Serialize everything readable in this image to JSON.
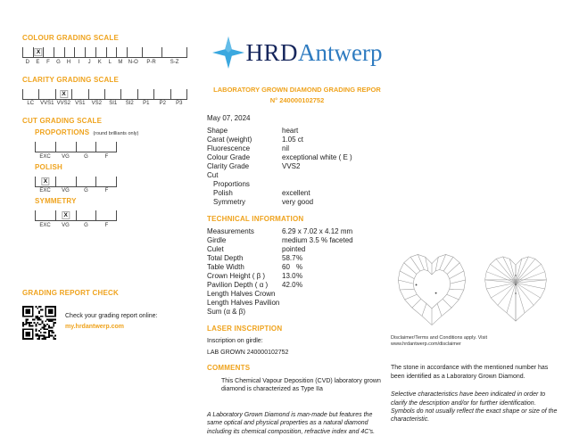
{
  "accent_color": "#EFA31D",
  "mark_symbol": "X",
  "left": {
    "colour_scale": {
      "title": "COLOUR GRADING SCALE",
      "labels": [
        "D",
        "E",
        "F",
        "G",
        "H",
        "I",
        "J",
        "K",
        "L",
        "M",
        "N-O",
        "P-R",
        "S-Z"
      ],
      "widths": [
        1,
        1,
        1,
        1,
        1,
        1,
        1,
        1,
        1,
        1,
        1.5,
        2,
        2.5
      ],
      "marked": "E"
    },
    "clarity_scale": {
      "title": "CLARITY GRADING SCALE",
      "labels": [
        "LC",
        "VVS1",
        "VVS2",
        "VS1",
        "VS2",
        "SI1",
        "SI2",
        "P1",
        "P2",
        "P3"
      ],
      "marked": "VVS2"
    },
    "cut_scale": {
      "title": "CUT GRADING SCALE",
      "proportions": {
        "title": "PROPORTIONS",
        "note": "(round brilliants only)",
        "labels": [
          "EXC",
          "VG",
          "G",
          "F"
        ],
        "marked": null
      },
      "polish": {
        "title": "POLISH",
        "labels": [
          "EXC",
          "VG",
          "G",
          "F"
        ],
        "marked": "EXC"
      },
      "symmetry": {
        "title": "SYMMETRY",
        "labels": [
          "EXC",
          "VG",
          "G",
          "F"
        ],
        "marked": "VG"
      }
    },
    "report_check": {
      "title": "GRADING REPORT CHECK",
      "text": "Check your grading report online:",
      "link": "my.hrdantwerp.com"
    }
  },
  "header": {
    "logo_hrd": "HRD",
    "logo_antwerp": "Antwerp",
    "title": "LABORATORY GROWN DIAMOND GRADING REPOR",
    "number": "N° 240000102752",
    "date": "May 07, 2024"
  },
  "summary": {
    "rows": [
      {
        "label": "Shape",
        "value": "heart"
      },
      {
        "label": "Carat (weight)",
        "value": "1.05 ct"
      },
      {
        "label": "Fluorescence",
        "value": "nil"
      },
      {
        "label": "Colour Grade",
        "value": "exceptional white ( E )"
      },
      {
        "label": "Clarity Grade",
        "value": "VVS2"
      },
      {
        "label": "Cut",
        "value": ""
      },
      {
        "label": "Proportions",
        "value": "",
        "indent": 1
      },
      {
        "label": "Polish",
        "value": "excellent",
        "indent": 1
      },
      {
        "label": "Symmetry",
        "value": "very good",
        "indent": 1
      }
    ]
  },
  "technical": {
    "title": "TECHNICAL INFORMATION",
    "rows": [
      {
        "label": "Measurements",
        "value": "6.29 x 7.02 x 4.12 mm"
      },
      {
        "label": "Girdle",
        "value": "medium 3.5 % faceted"
      },
      {
        "label": "Culet",
        "value": "pointed"
      },
      {
        "label": "Total Depth",
        "value": "58.7",
        "unit": "%"
      },
      {
        "label": "Table Width",
        "value": "60",
        "unit": "%"
      },
      {
        "label": "Crown Height ( β )",
        "value": "13.0",
        "unit": "%"
      },
      {
        "label": "Pavilion Depth ( α )",
        "value": "42.0",
        "unit": "%"
      },
      {
        "label": "Length Halves Crown",
        "value": ""
      },
      {
        "label": "Length Halves Pavilion",
        "value": ""
      },
      {
        "label": "Sum  (α & β)",
        "value": ""
      }
    ]
  },
  "laser": {
    "title": "LASER INSCRIPTION",
    "label": "Inscription on girdle:",
    "value": "LAB GROWN 240000102752"
  },
  "comments": {
    "title": "COMMENTS",
    "text": "This Chemical Vapour Deposition (CVD) laboratory grown diamond is characterized as Type IIa",
    "italic": "A Laboratory Grown Diamond is man-made but features the same optical and physical properties as a natural diamond including its chemical composition, refractive index and 4C's."
  },
  "right": {
    "disclaimer": "Disclaimer/Terms and Conditions apply. Visit www.hrdantwerp.com/disclaimer",
    "identification": "The stone in accordance with the mentioned number has been identified as a Laboratory Grown Diamond.",
    "note": "Selective characteristics have been indicated in order to clarify the description and/or for further identification. Symbols do not usually reflect the exact shape or size of the characteristic."
  }
}
